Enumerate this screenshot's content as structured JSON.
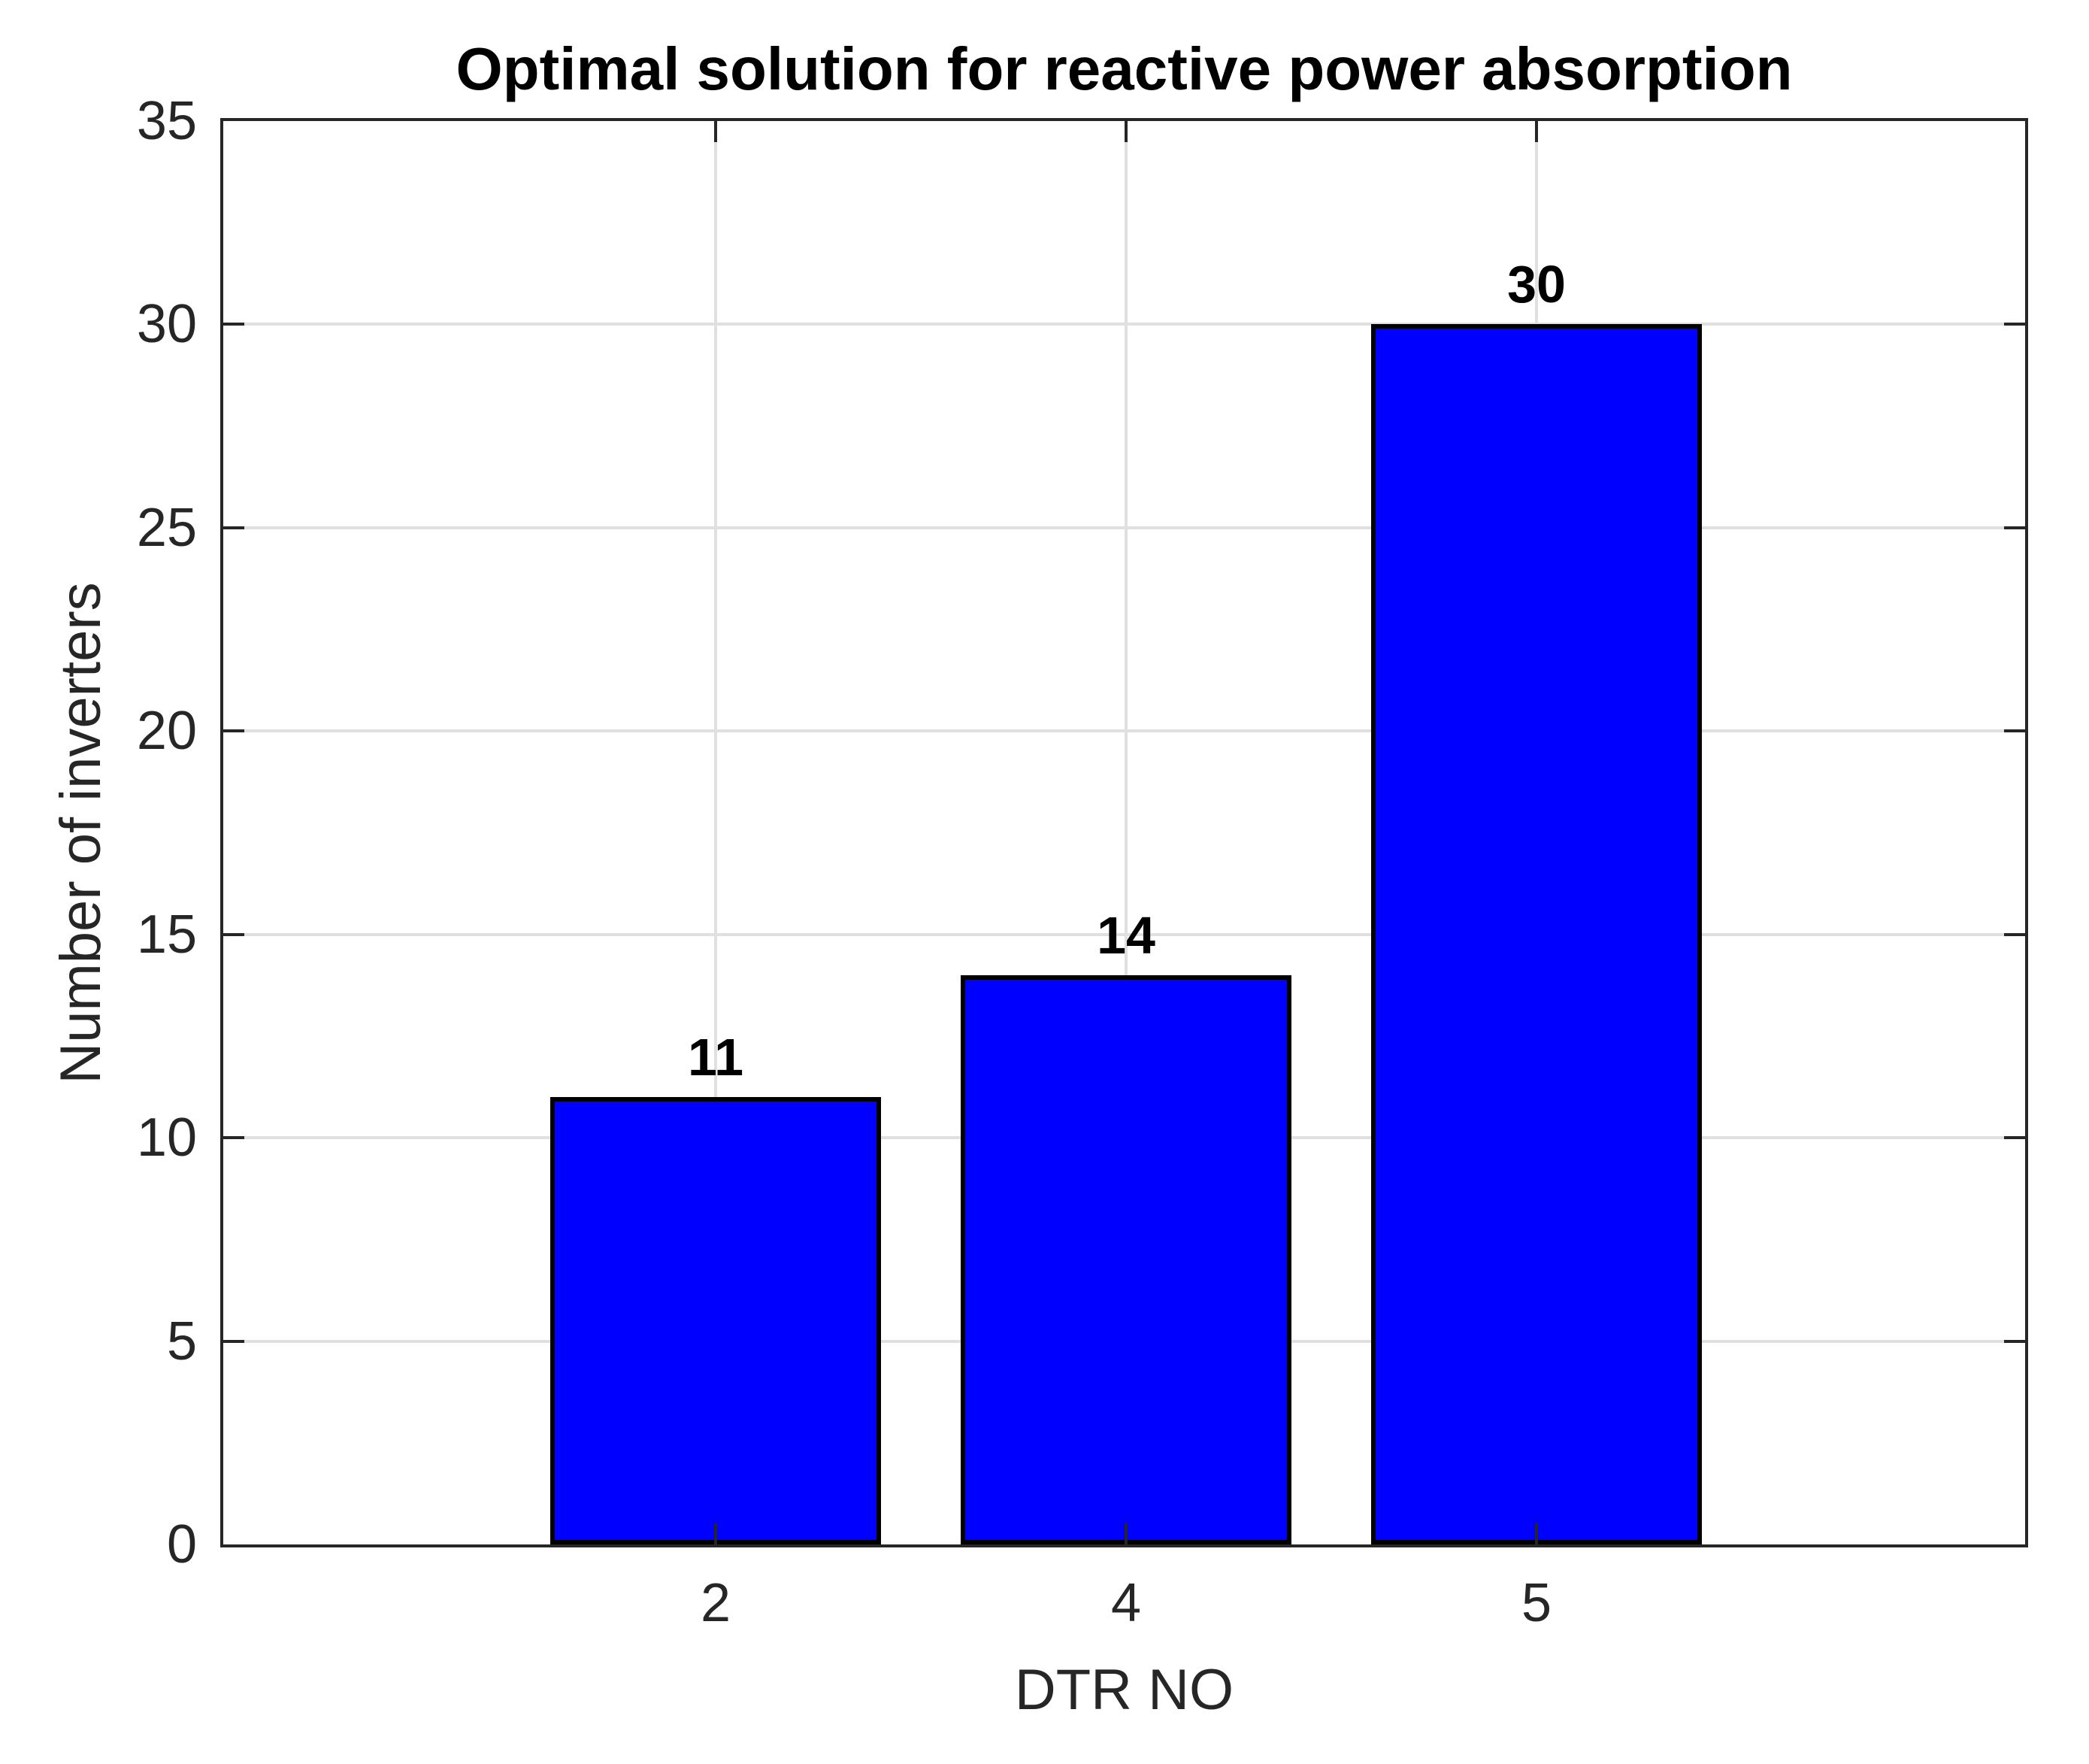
{
  "chart_data": {
    "type": "bar",
    "title": "Optimal solution for reactive power absorption",
    "xlabel": "DTR NO",
    "ylabel": "Number of inverters",
    "categories": [
      "2",
      "4",
      "5"
    ],
    "values": [
      11,
      14,
      30
    ],
    "bar_labels": [
      "11",
      "14",
      "30"
    ],
    "ylim": [
      0,
      35
    ],
    "yticks": [
      0,
      5,
      10,
      15,
      20,
      25,
      30,
      35
    ],
    "grid": "on",
    "legend": "none",
    "bar_color": "#0000ff",
    "bar_edge_color": "#000000",
    "grid_color": "#e0e0e0",
    "axis_color": "#262626",
    "title_color": "#000000",
    "background_color": "#ffffff"
  }
}
